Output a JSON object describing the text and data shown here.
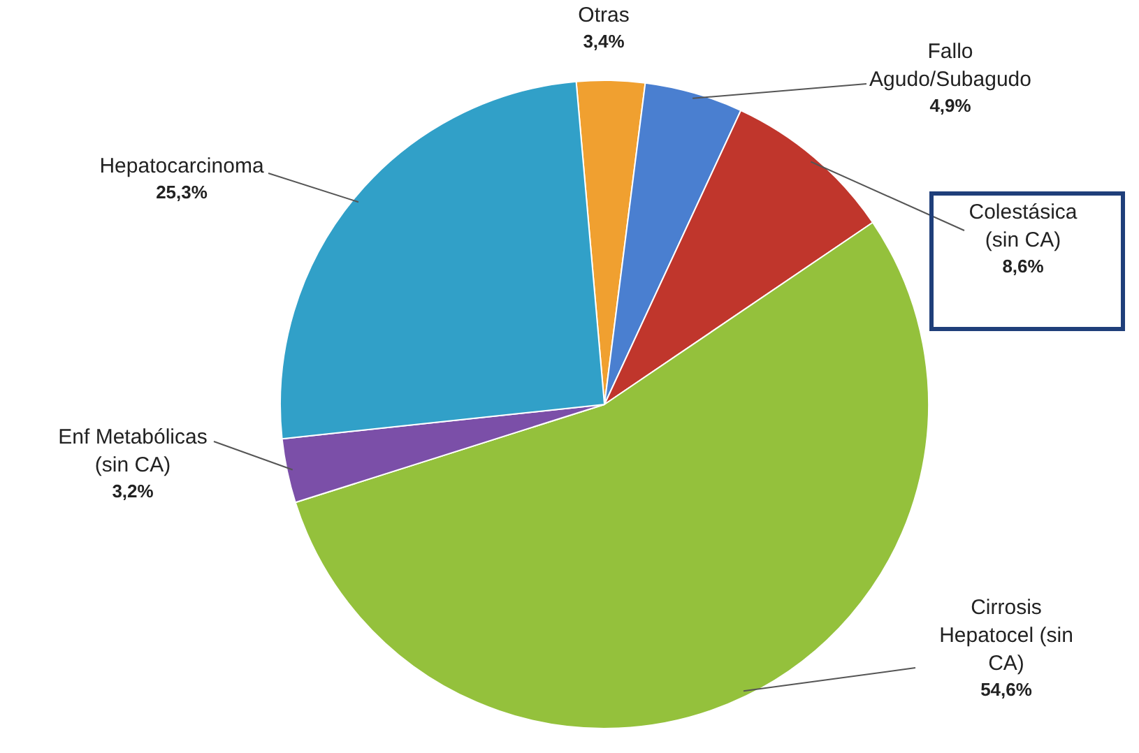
{
  "chart_data": {
    "type": "pie",
    "categories": [
      "Otras",
      "Fallo Agudo/Subagudo",
      "Colestásica (sin CA)",
      "Cirrosis Hepatocel (sin CA)",
      "Enf Metabólicas (sin CA)",
      "Hepatocarcinoma"
    ],
    "values": [
      3.4,
      4.9,
      8.6,
      54.6,
      3.2,
      25.3
    ],
    "value_labels": [
      "3,4%",
      "4,9%",
      "8,6%",
      "54,6%",
      "3,2%",
      "25,3%"
    ],
    "colors": [
      "#f0a030",
      "#4a7fd0",
      "#c0362c",
      "#94c13c",
      "#7b4fa8",
      "#31a0c8"
    ],
    "legend": false
  }
}
